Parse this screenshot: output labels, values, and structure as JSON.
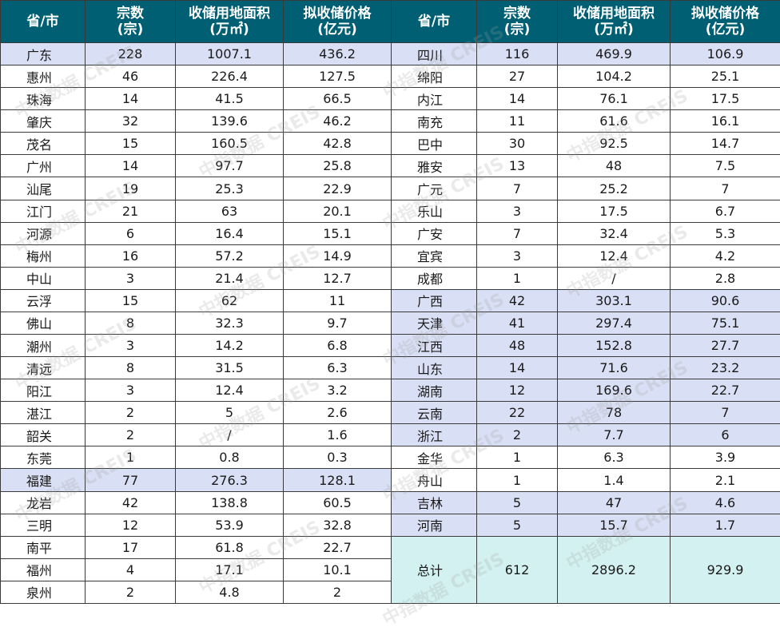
{
  "headers": {
    "province": "省/市",
    "count": [
      "宗数",
      "(宗)"
    ],
    "area": [
      "收储用地面积",
      "(万㎡)"
    ],
    "price": [
      "拟收储价格",
      "(亿元)"
    ]
  },
  "left_rows": [
    {
      "name": "广东",
      "count": "228",
      "area": "1007.1",
      "price": "436.2",
      "province": true
    },
    {
      "name": "惠州",
      "count": "46",
      "area": "226.4",
      "price": "127.5"
    },
    {
      "name": "珠海",
      "count": "14",
      "area": "41.5",
      "price": "66.5"
    },
    {
      "name": "肇庆",
      "count": "32",
      "area": "139.6",
      "price": "46.2"
    },
    {
      "name": "茂名",
      "count": "15",
      "area": "160.5",
      "price": "42.8"
    },
    {
      "name": "广州",
      "count": "14",
      "area": "97.7",
      "price": "25.8"
    },
    {
      "name": "汕尾",
      "count": "19",
      "area": "25.3",
      "price": "22.9"
    },
    {
      "name": "江门",
      "count": "21",
      "area": "63",
      "price": "20.1"
    },
    {
      "name": "河源",
      "count": "6",
      "area": "16.4",
      "price": "15.1"
    },
    {
      "name": "梅州",
      "count": "16",
      "area": "57.2",
      "price": "14.9"
    },
    {
      "name": "中山",
      "count": "3",
      "area": "21.4",
      "price": "12.7"
    },
    {
      "name": "云浮",
      "count": "15",
      "area": "62",
      "price": "11"
    },
    {
      "name": "佛山",
      "count": "8",
      "area": "32.3",
      "price": "9.7"
    },
    {
      "name": "潮州",
      "count": "3",
      "area": "14.2",
      "price": "6.8"
    },
    {
      "name": "清远",
      "count": "8",
      "area": "31.5",
      "price": "6.3"
    },
    {
      "name": "阳江",
      "count": "3",
      "area": "12.4",
      "price": "3.2"
    },
    {
      "name": "湛江",
      "count": "2",
      "area": "5",
      "price": "2.6"
    },
    {
      "name": "韶关",
      "count": "2",
      "area": "/",
      "price": "1.6"
    },
    {
      "name": "东莞",
      "count": "1",
      "area": "0.8",
      "price": "0.3"
    },
    {
      "name": "福建",
      "count": "77",
      "area": "276.3",
      "price": "128.1",
      "province": true
    },
    {
      "name": "龙岩",
      "count": "42",
      "area": "138.8",
      "price": "60.5"
    },
    {
      "name": "三明",
      "count": "12",
      "area": "53.9",
      "price": "32.8"
    },
    {
      "name": "南平",
      "count": "17",
      "area": "61.8",
      "price": "22.7"
    },
    {
      "name": "福州",
      "count": "4",
      "area": "17.1",
      "price": "10.1"
    },
    {
      "name": "泉州",
      "count": "2",
      "area": "4.8",
      "price": "2"
    }
  ],
  "right_rows": [
    {
      "name": "四川",
      "count": "116",
      "area": "469.9",
      "price": "106.9",
      "province": true
    },
    {
      "name": "绵阳",
      "count": "27",
      "area": "104.2",
      "price": "25.1"
    },
    {
      "name": "内江",
      "count": "14",
      "area": "76.1",
      "price": "17.5"
    },
    {
      "name": "南充",
      "count": "11",
      "area": "61.6",
      "price": "16.1"
    },
    {
      "name": "巴中",
      "count": "30",
      "area": "92.5",
      "price": "14.7"
    },
    {
      "name": "雅安",
      "count": "13",
      "area": "48",
      "price": "7.5"
    },
    {
      "name": "广元",
      "count": "7",
      "area": "25.2",
      "price": "7"
    },
    {
      "name": "乐山",
      "count": "3",
      "area": "17.5",
      "price": "6.7"
    },
    {
      "name": "广安",
      "count": "7",
      "area": "32.4",
      "price": "5.3"
    },
    {
      "name": "宜宾",
      "count": "3",
      "area": "12.4",
      "price": "4.2"
    },
    {
      "name": "成都",
      "count": "1",
      "area": "/",
      "price": "2.8"
    },
    {
      "name": "广西",
      "count": "42",
      "area": "303.1",
      "price": "90.6",
      "province": true
    },
    {
      "name": "天津",
      "count": "41",
      "area": "297.4",
      "price": "75.1",
      "province": true
    },
    {
      "name": "江西",
      "count": "48",
      "area": "152.8",
      "price": "27.7",
      "province": true
    },
    {
      "name": "山东",
      "count": "14",
      "area": "71.6",
      "price": "23.2",
      "province": true
    },
    {
      "name": "湖南",
      "count": "12",
      "area": "169.6",
      "price": "22.7",
      "province": true
    },
    {
      "name": "云南",
      "count": "22",
      "area": "78",
      "price": "7",
      "province": true
    },
    {
      "name": "浙江",
      "count": "2",
      "area": "7.7",
      "price": "6",
      "province": true
    },
    {
      "name": "金华",
      "count": "1",
      "area": "6.3",
      "price": "3.9"
    },
    {
      "name": "舟山",
      "count": "1",
      "area": "1.4",
      "price": "2.1"
    },
    {
      "name": "吉林",
      "count": "5",
      "area": "47",
      "price": "4.6",
      "province": true
    },
    {
      "name": "河南",
      "count": "5",
      "area": "15.7",
      "price": "1.7",
      "province": true
    }
  ],
  "total": {
    "label": "总计",
    "count": "612",
    "area": "2896.2",
    "price": "929.9"
  },
  "watermark": {
    "text": "中指数据 CREIS"
  },
  "colors": {
    "header_bg": "#005f73",
    "province_bg": "#d9dff4",
    "total_bg": "#d3f1f0"
  }
}
